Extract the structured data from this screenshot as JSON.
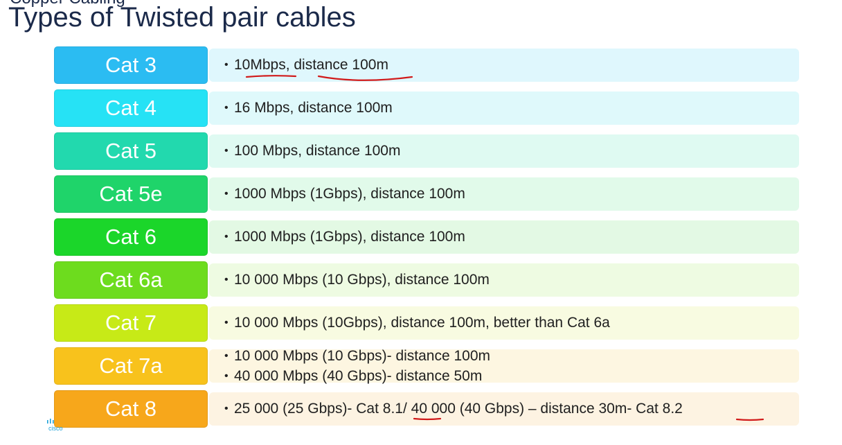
{
  "slide": {
    "supertitle": "Copper Cabling",
    "title": "Types of Twisted pair cables"
  },
  "rows": [
    {
      "label": "Cat 3",
      "color": "#2bbcf2",
      "desc_bg": "#dff7fd",
      "lines": [
        "10Mbps, distance 100m"
      ]
    },
    {
      "label": "Cat 4",
      "color": "#26e2f5",
      "desc_bg": "#dff9fb",
      "lines": [
        "16 Mbps, distance 100m"
      ]
    },
    {
      "label": "Cat 5",
      "color": "#22d9ae",
      "desc_bg": "#dffaf2",
      "lines": [
        "100 Mbps, distance 100m"
      ]
    },
    {
      "label": "Cat 5e",
      "color": "#1fd46a",
      "desc_bg": "#e1faea",
      "lines": [
        "1000 Mbps (1Gbps), distance 100m"
      ]
    },
    {
      "label": "Cat 6",
      "color": "#1bd62a",
      "desc_bg": "#e3f9e4",
      "lines": [
        "1000 Mbps (1Gbps), distance 100m"
      ]
    },
    {
      "label": "Cat 6a",
      "color": "#6ddc1e",
      "desc_bg": "#eefbe2",
      "lines": [
        "10 000 Mbps (10 Gbps), distance 100m"
      ]
    },
    {
      "label": "Cat 7",
      "color": "#c7ea17",
      "desc_bg": "#f8fbe1",
      "lines": [
        "10 000 Mbps (10Gbps), distance 100m, better than Cat 6a"
      ]
    },
    {
      "label": "Cat 7a",
      "color": "#f8c21c",
      "desc_bg": "#fdf6e1",
      "lines": [
        "10 000 Mbps (10 Gbps)- distance 100m",
        "40 000 Mbps (40 Gbps)- distance 50m"
      ]
    },
    {
      "label": "Cat 8",
      "color": "#f7a71b",
      "desc_bg": "#fdf3e2",
      "lines": [
        "25 000 (25 Gbps)- Cat 8.1/ 40 000 (40 Gbps) – distance 30m- Cat 8.2"
      ]
    }
  ],
  "annotations": {
    "ink_color": "#d11a1a"
  },
  "logo": {
    "icon": "cisco-logo-icon",
    "color": "#1ba0d7"
  }
}
